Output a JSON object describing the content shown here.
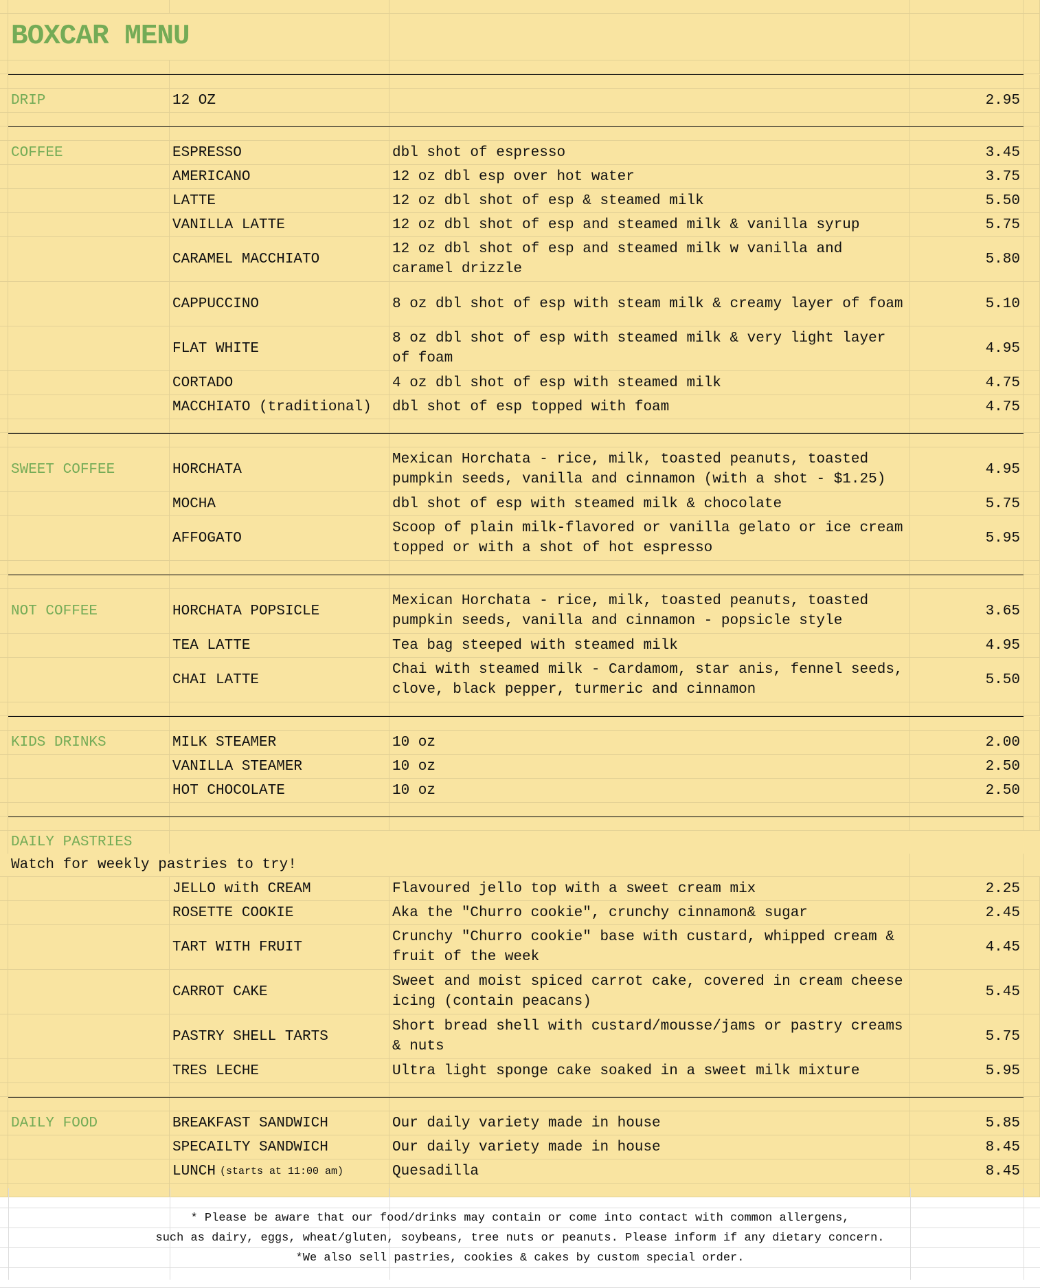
{
  "title": "BOXCAR MENU",
  "colors": {
    "background": "#f9e4a1",
    "category": "#74ab56",
    "grid": "#e2d095"
  },
  "sections": [
    {
      "category": "DRIP",
      "items": [
        {
          "name": "12 OZ",
          "desc": "",
          "price": "2.95"
        }
      ]
    },
    {
      "category": "COFFEE",
      "items": [
        {
          "name": "ESPRESSO",
          "desc": "dbl shot of espresso",
          "price": "3.45"
        },
        {
          "name": "AMERICANO",
          "desc": "12 oz dbl esp over hot water",
          "price": "3.75"
        },
        {
          "name": "LATTE",
          "desc": "12 oz dbl shot of esp & steamed milk",
          "price": "5.50"
        },
        {
          "name": "VANILLA LATTE",
          "desc": "12 oz dbl shot of esp and steamed milk & vanilla syrup",
          "price": "5.75"
        },
        {
          "name": "CARAMEL MACCHIATO",
          "desc": "12 oz dbl shot of esp and steamed milk w vanilla and caramel drizzle",
          "price": "5.80"
        },
        {
          "name": "CAPPUCCINO",
          "desc": "8 oz dbl shot of esp with steam milk & creamy layer of foam",
          "price": "5.10"
        },
        {
          "name": "FLAT WHITE",
          "desc": "8 oz dbl shot of esp with steamed milk & very light layer of foam",
          "price": "4.95"
        },
        {
          "name": "CORTADO",
          "desc": "4 oz dbl shot of esp with steamed milk",
          "price": "4.75"
        },
        {
          "name": "MACCHIATO (traditional)",
          "desc": "dbl shot of esp topped with foam",
          "price": "4.75"
        }
      ]
    },
    {
      "category": "SWEET COFFEE",
      "items": [
        {
          "name": "HORCHATA",
          "desc": "Mexican Horchata - rice, milk, toasted peanuts, toasted pumpkin seeds, vanilla and cinnamon (with a shot - $1.25)",
          "price": "4.95"
        },
        {
          "name": "MOCHA",
          "desc": "dbl shot of esp with steamed milk & chocolate",
          "price": "5.75"
        },
        {
          "name": "AFFOGATO",
          "desc": "Scoop of plain milk-flavored or vanilla gelato or ice cream topped or with a shot of hot espresso",
          "price": "5.95"
        }
      ]
    },
    {
      "category": "NOT COFFEE",
      "items": [
        {
          "name": "HORCHATA POPSICLE",
          "desc": "Mexican Horchata - rice, milk, toasted peanuts, toasted pumpkin seeds, vanilla and cinnamon - popsicle style",
          "price": "3.65"
        },
        {
          "name": "TEA LATTE",
          "desc": "Tea bag steeped with steamed milk",
          "price": "4.95"
        },
        {
          "name": "CHAI LATTE",
          "desc": "Chai with steamed milk - Cardamom, star anis, fennel seeds, clove, black pepper, turmeric and cinnamon",
          "price": "5.50"
        }
      ]
    },
    {
      "category": "KIDS DRINKS",
      "items": [
        {
          "name": "MILK STEAMER",
          "desc": "10 oz",
          "price": "2.00"
        },
        {
          "name": "VANILLA STEAMER",
          "desc": "10 oz",
          "price": "2.50"
        },
        {
          "name": "HOT CHOCOLATE",
          "desc": "10 oz",
          "price": "2.50"
        }
      ]
    },
    {
      "category": "DAILY PASTRIES",
      "note": "Watch for weekly pastries to try!",
      "items": [
        {
          "name": "JELLO with CREAM",
          "desc": "Flavoured jello top with a sweet cream mix",
          "price": "2.25"
        },
        {
          "name": "ROSETTE COOKIE",
          "desc": "Aka the \"Churro cookie\", crunchy cinnamon& sugar",
          "price": "2.45"
        },
        {
          "name": "TART WITH FRUIT",
          "desc": "Crunchy \"Churro cookie\" base with custard, whipped cream & fruit of the week",
          "price": "4.45"
        },
        {
          "name": "CARROT CAKE",
          "desc": "Sweet and moist spiced carrot cake, covered in cream cheese icing (contain peacans)",
          "price": "5.45"
        },
        {
          "name": "PASTRY SHELL TARTS",
          "desc": "Short bread shell with custard/mousse/jams or pastry creams & nuts",
          "price": "5.75"
        },
        {
          "name": "TRES LECHE",
          "desc": "Ultra light sponge cake soaked in a sweet milk mixture",
          "price": "5.95"
        }
      ]
    },
    {
      "category": "DAILY FOOD",
      "items": [
        {
          "name": "BREAKFAST SANDWICH",
          "desc": "Our daily variety made in house",
          "price": "5.85"
        },
        {
          "name": "SPECAILTY SANDWICH",
          "desc": "Our daily variety made in house",
          "price": "8.45"
        },
        {
          "name": "LUNCH",
          "name_note": "(starts at 11:00 am)",
          "desc": "Quesadilla",
          "price": "8.45"
        }
      ]
    }
  ],
  "footer": [
    "* Please be aware that our food/drinks may contain or come into contact with common allergens,",
    "such as dairy, eggs, wheat/gluten, soybeans, tree nuts or peanuts. Please inform if any dietary concern.",
    "*We also sell pastries, cookies & cakes by custom special order."
  ]
}
